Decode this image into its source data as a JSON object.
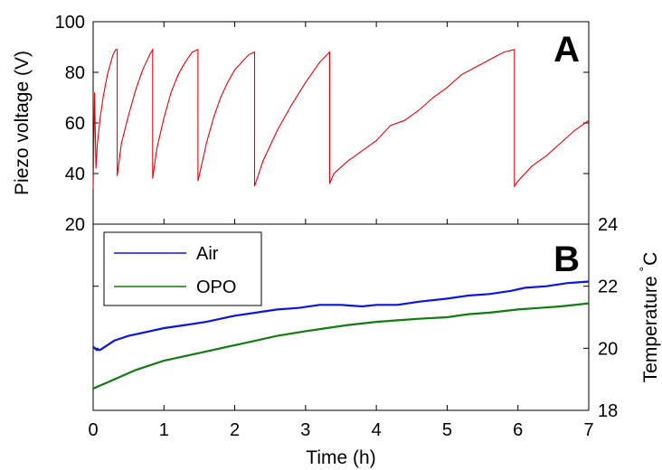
{
  "chart_data": [
    {
      "panel": "A",
      "type": "line",
      "panel_label": "A",
      "xlabel": "Time (h)",
      "ylabel": "Piezo voltage (V)",
      "xlim": [
        0,
        7
      ],
      "ylim": [
        20,
        100
      ],
      "yticks": [
        20,
        40,
        60,
        80,
        100
      ],
      "ytick_labels": [
        "20",
        "40",
        "60",
        "80",
        "100"
      ],
      "grid": false,
      "series": [
        {
          "color": "#e8000b",
          "x": [
            0,
            0.02,
            0.04,
            0.06,
            0.08,
            0.1,
            0.12,
            0.14,
            0.16,
            0.18,
            0.2,
            0.22,
            0.24,
            0.26,
            0.28,
            0.3,
            0.32,
            0.34,
            0.34,
            0.4,
            0.5,
            0.6,
            0.7,
            0.8,
            0.84,
            0.84,
            0.9,
            1.0,
            1.1,
            1.2,
            1.3,
            1.4,
            1.48,
            1.48,
            1.6,
            1.7,
            1.8,
            1.9,
            2.0,
            2.1,
            2.2,
            2.28,
            2.28,
            2.4,
            2.6,
            2.8,
            3.0,
            3.2,
            3.34,
            3.34,
            3.4,
            3.6,
            3.8,
            4.0,
            4.2,
            4.4,
            4.6,
            4.8,
            5.0,
            5.2,
            5.4,
            5.6,
            5.8,
            5.95,
            5.95,
            6.0,
            6.2,
            6.4,
            6.6,
            6.8,
            7.0
          ],
          "y": [
            34,
            72,
            42,
            52,
            57,
            62,
            66,
            70,
            73,
            76,
            79,
            81,
            83,
            85,
            87,
            88,
            89,
            89,
            39,
            52,
            63,
            73,
            81,
            87,
            89,
            38,
            50,
            62,
            72,
            79,
            84,
            88,
            89,
            37,
            52,
            62,
            70,
            76,
            81,
            84,
            87,
            88,
            35,
            45,
            57,
            67,
            76,
            84,
            88,
            36,
            40,
            45,
            49,
            53,
            59,
            61,
            65,
            70,
            74,
            79,
            82,
            85,
            88,
            89,
            35,
            37,
            43,
            47,
            52,
            57,
            61
          ]
        }
      ]
    },
    {
      "panel": "B",
      "type": "line",
      "panel_label": "B",
      "xlabel": "Time (h)",
      "ylabel": "Temperature °C",
      "ylabel_parts": {
        "main": "Temperature",
        "degree": "°",
        "unit": "C"
      },
      "xlim": [
        0,
        7
      ],
      "xticks": [
        0,
        1,
        2,
        3,
        4,
        5,
        6,
        7
      ],
      "xtick_labels": [
        "0",
        "1",
        "2",
        "3",
        "4",
        "5",
        "6",
        "7"
      ],
      "ylim": [
        18,
        24
      ],
      "yticks": [
        18,
        20,
        22,
        24
      ],
      "ytick_labels": [
        "18",
        "20",
        "22",
        "24"
      ],
      "grid": false,
      "legend": {
        "placement": "top-left"
      },
      "series": [
        {
          "name": "Air",
          "color": "#0a14e6",
          "x": [
            0,
            0.05,
            0.1,
            0.2,
            0.3,
            0.5,
            0.7,
            1.0,
            1.3,
            1.6,
            2.0,
            2.3,
            2.6,
            2.9,
            3.2,
            3.5,
            3.8,
            4.0,
            4.3,
            4.6,
            5.0,
            5.3,
            5.6,
            5.9,
            6.1,
            6.4,
            6.7,
            7.0
          ],
          "y": [
            20.05,
            19.95,
            19.95,
            20.1,
            20.25,
            20.4,
            20.5,
            20.65,
            20.75,
            20.85,
            21.05,
            21.15,
            21.25,
            21.3,
            21.4,
            21.4,
            21.35,
            21.4,
            21.4,
            21.5,
            21.6,
            21.7,
            21.75,
            21.85,
            21.95,
            22.0,
            22.1,
            22.15
          ]
        },
        {
          "name": "OPO",
          "color": "#117a11",
          "x": [
            0,
            0.1,
            0.2,
            0.4,
            0.6,
            0.8,
            1.0,
            1.3,
            1.6,
            2.0,
            2.3,
            2.6,
            3.0,
            3.3,
            3.6,
            4.0,
            4.3,
            4.6,
            5.0,
            5.3,
            5.6,
            6.0,
            6.3,
            6.6,
            7.0
          ],
          "y": [
            18.7,
            18.8,
            18.9,
            19.1,
            19.3,
            19.45,
            19.6,
            19.75,
            19.9,
            20.1,
            20.25,
            20.4,
            20.55,
            20.65,
            20.75,
            20.85,
            20.9,
            20.95,
            21.0,
            21.1,
            21.15,
            21.25,
            21.3,
            21.35,
            21.45
          ]
        }
      ]
    }
  ]
}
